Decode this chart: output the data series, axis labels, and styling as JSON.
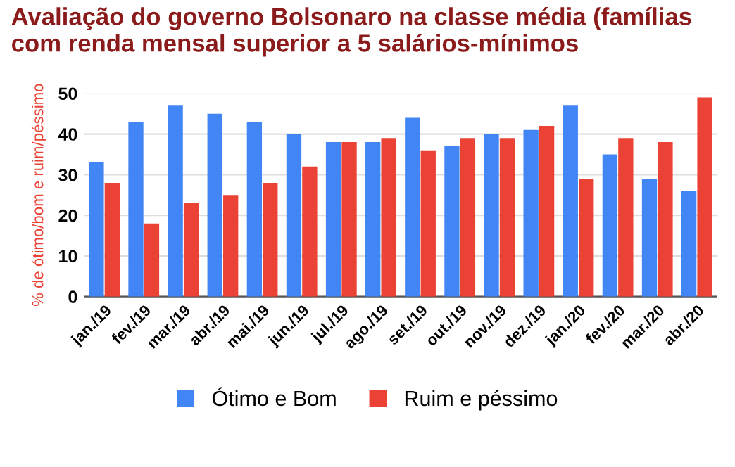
{
  "chart_data": {
    "type": "bar",
    "title": "Avaliação do governo Bolsonaro na classe média (famílias com renda mensal superior a 5 salários-mínimos",
    "ylabel": "% de ótimo/bom e ruim/péssimo",
    "categories": [
      "jan./19",
      "fev./19",
      "mar./19",
      "abr./19",
      "mai./19",
      "jun./19",
      "jul./19",
      "ago./19",
      "set./19",
      "out./19",
      "nov./19",
      "dez./19",
      "jan./20",
      "fev./20",
      "mar./20",
      "abr./20"
    ],
    "series": [
      {
        "name": "Ótimo e Bom",
        "color": "#4285f4",
        "values": [
          33,
          43,
          47,
          45,
          43,
          40,
          38,
          38,
          44,
          37,
          40,
          41,
          47,
          35,
          29,
          26
        ]
      },
      {
        "name": "Ruim e péssimo",
        "color": "#ea4335",
        "values": [
          28,
          18,
          23,
          25,
          28,
          32,
          38,
          39,
          36,
          39,
          39,
          42,
          29,
          39,
          38,
          49
        ]
      }
    ],
    "ylim": [
      0,
      50
    ],
    "yticks": [
      0,
      10,
      20,
      30,
      40,
      50
    ],
    "grid": "y",
    "legend": "bottom"
  }
}
